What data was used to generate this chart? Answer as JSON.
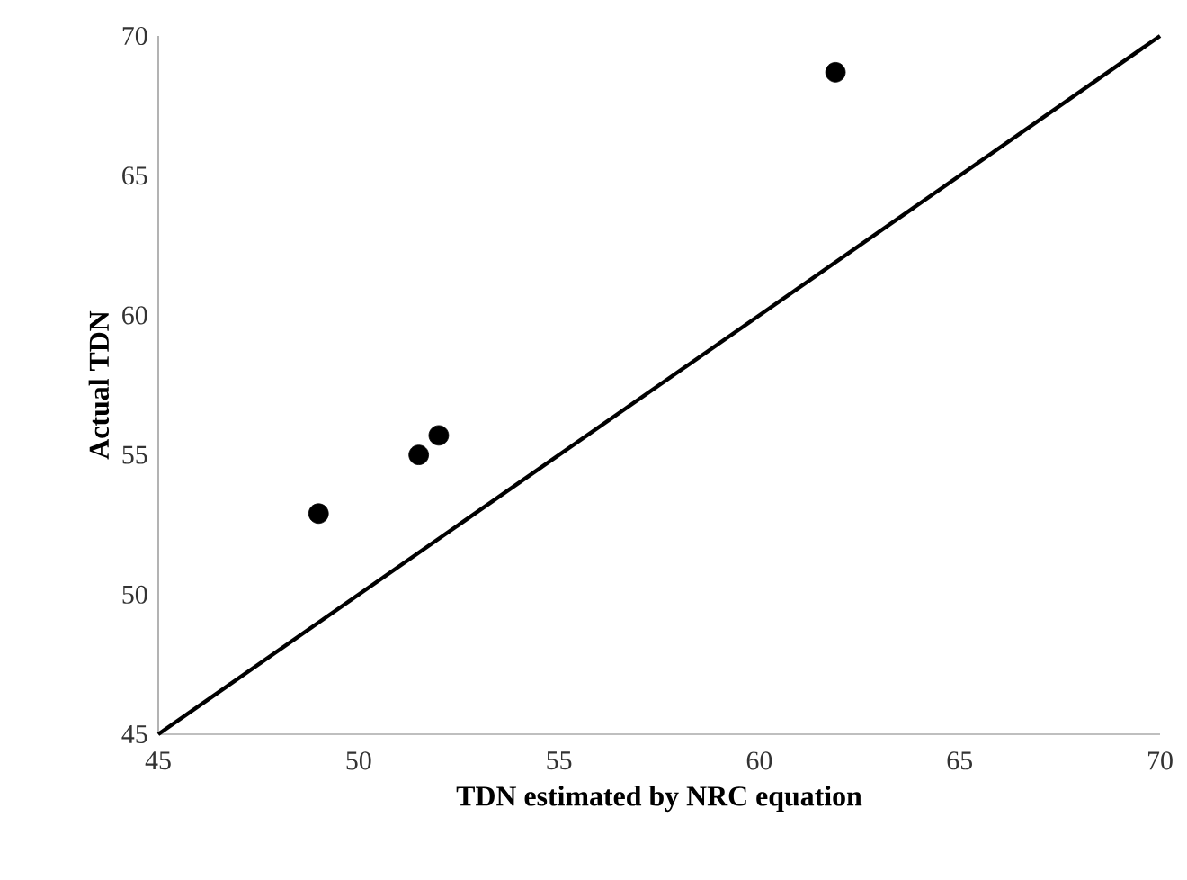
{
  "chart_data": {
    "type": "scatter",
    "xlabel": "TDN estimated by NRC equation",
    "ylabel": "Actual TDN",
    "xlim": [
      45,
      70
    ],
    "xticks": [
      45,
      50,
      55,
      60,
      65,
      70
    ],
    "ylim": [
      45,
      70
    ],
    "yticks": [
      45,
      50,
      55,
      60,
      65,
      70
    ],
    "grid": false,
    "series": [
      {
        "color": "#000000",
        "marker": "circle",
        "x": [
          49,
          51.5,
          52,
          61.9
        ],
        "values": [
          52.9,
          55.0,
          55.7,
          68.7
        ]
      },
      {
        "type": "line",
        "color": "#000000",
        "x": [
          45,
          70
        ],
        "values": [
          45,
          70
        ],
        "marker": "none",
        "line_style": "solid"
      }
    ]
  }
}
